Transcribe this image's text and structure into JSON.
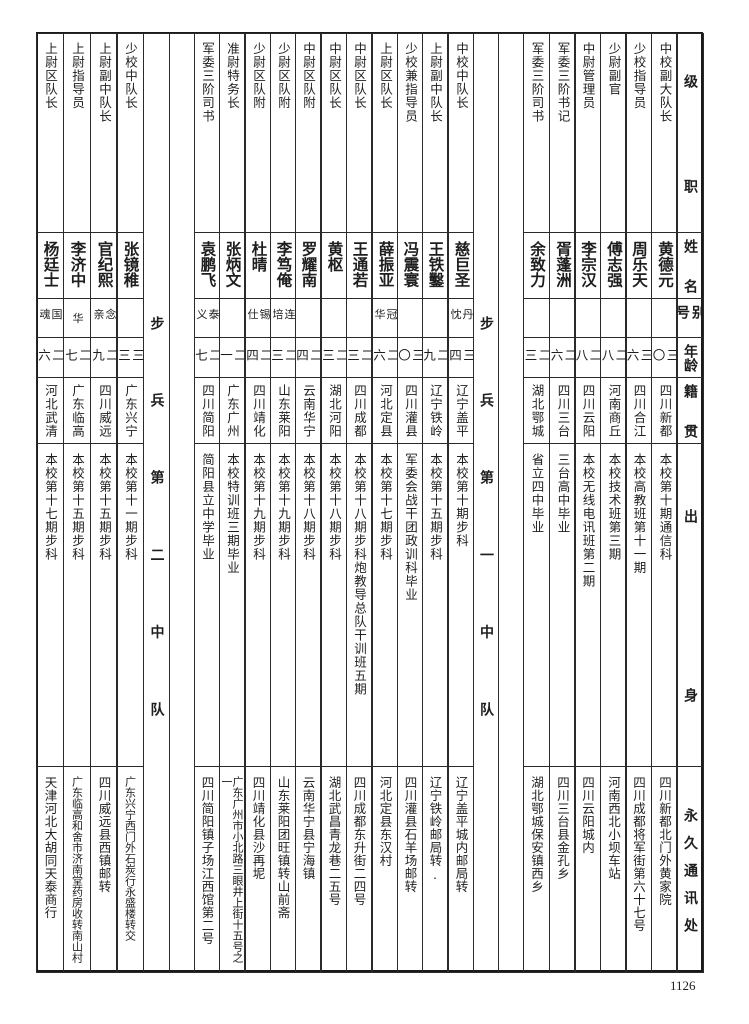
{
  "header": {
    "rank": "级职",
    "name": "姓名",
    "alias": "别号",
    "age": "年龄",
    "native": "籍贯",
    "education": "出身",
    "address": "永久通讯处"
  },
  "groups": [
    {
      "label": "",
      "rows": [
        {
          "rank": "中校副大队长",
          "name": "黄德元",
          "alias": "",
          "age": "三〇",
          "native": "四川新都",
          "education": "本校第十期通信科",
          "address": "四川新都北门外黄家院"
        },
        {
          "rank": "少校指导员",
          "name": "周乐天",
          "alias": "",
          "age": "三六",
          "native": "四川合江",
          "education": "本校高教班第十一期",
          "address": "四川成都将军街第六十七号"
        },
        {
          "rank": "少尉副官",
          "name": "傅志强",
          "alias": "",
          "age": "二八",
          "native": "河南商丘",
          "education": "本校技术班第三期",
          "address": "河南西北小坝车站"
        },
        {
          "rank": "中尉管理员",
          "name": "李宗汉",
          "alias": "",
          "age": "二八",
          "native": "四川云阳",
          "education": "本校无线电讯班第二期",
          "address": "四川云阳城内"
        },
        {
          "rank": "军委三阶书记",
          "name": "胥蓬洲",
          "alias": "",
          "age": "二六",
          "native": "四川三台",
          "education": "三台高中毕业",
          "address": "四川三台县金孔乡"
        },
        {
          "rank": "军委三阶司书",
          "name": "余致力",
          "alias": "",
          "age": "二三",
          "native": "湖北鄂城",
          "education": "省立四中毕业",
          "address": "湖北鄂城保安镇西乡"
        }
      ]
    },
    {
      "label": "步兵第一中队",
      "rows": [
        {
          "rank": "中校中队长",
          "name": "慈巨圣",
          "alias": "丹忱",
          "age": "三四",
          "native": "辽宁盖平",
          "education": "本校第十期步科",
          "address": "辽宁盖平城内邮局转"
        },
        {
          "rank": "上尉副中队长",
          "name": "王铁鑿",
          "alias": "",
          "age": "二九",
          "native": "辽宁铁岭",
          "education": "本校第十五期步科",
          "address": "辽宁铁岭邮局转."
        },
        {
          "rank": "少校兼指导员",
          "name": "冯震寰",
          "alias": "",
          "age": "三〇",
          "native": "四川灌县",
          "education": "军委会战干团政训科毕业",
          "address": "四川灌县石羊场邮转"
        },
        {
          "rank": "上尉区队长",
          "name": "薛振亚",
          "alias": "冠华",
          "age": "二六",
          "native": "河北定县",
          "education": "本校第十七期步科",
          "address": "河北定县东汉村"
        },
        {
          "rank": "中尉区队长",
          "name": "王通若",
          "alias": "",
          "age": "二三",
          "native": "四川成都",
          "education": "本校第十八期步科炮教导总队干训班五期",
          "address": "四川成都东升街二四号"
        },
        {
          "rank": "中尉区队长",
          "name": "黄枢",
          "alias": "",
          "age": "二三",
          "native": "湖北河阳",
          "education": "本校第十八期步科",
          "address": "湖北武昌青龙巷二五号"
        },
        {
          "rank": "中尉区队附",
          "name": "罗耀南",
          "alias": "",
          "age": "二四",
          "native": "云南华宁",
          "education": "本校第十八期步科",
          "address": "云南华宁县宁海镇"
        },
        {
          "rank": "少尉区队附",
          "name": "李笃俺",
          "alias": "连培",
          "age": "二三",
          "native": "山东莱阳",
          "education": "本校第十九期步科",
          "address": "山东莱阳团旺镇转山前斋"
        },
        {
          "rank": "少尉区队附",
          "name": "杜晴",
          "alias": "锡仕",
          "age": "二四",
          "native": "四川靖化",
          "education": "本校第十九期步科",
          "address": "四川靖化县沙再坭"
        },
        {
          "rank": "准尉特务长",
          "name": "张炳文",
          "alias": "",
          "age": "二一",
          "native": "广东广州",
          "education": "本校特训班三期毕业",
          "address": "广东广州市小北路三眼井上街十五号之一"
        },
        {
          "rank": "军委三阶司书",
          "name": "袁鹏飞",
          "alias": "泰义",
          "age": "二七",
          "native": "四川简阳",
          "education": "简阳县立中学毕业",
          "address": "四川简阳镇子场江西馆第二号"
        }
      ]
    },
    {
      "label": "步兵第二中队",
      "rows": [
        {
          "rank": "少校中队长",
          "name": "张镜稚",
          "alias": "",
          "age": "三三",
          "native": "广东兴宁",
          "education": "本校第十一期步科",
          "address": "广东兴宁西门外石炭行永盛楼转交"
        },
        {
          "rank": "上尉副中队长",
          "name": "官纪熙",
          "alias": "念亲",
          "age": "二九",
          "native": "四川威远",
          "education": "本校第十五期步科",
          "address": "四川威远县西镇邮转"
        },
        {
          "rank": "上尉指导员",
          "name": "李济中",
          "alias": "华",
          "age": "二七",
          "native": "广东临高",
          "education": "本校第十五期步科",
          "address": "广东临高和舍市济南堂药房收转南山村"
        },
        {
          "rank": "上尉区队长",
          "name": "杨廷士",
          "alias": "国魂",
          "age": "二六",
          "native": "河北武清",
          "education": "本校第十七期步科",
          "address": "天津河北大胡同天泰商行"
        }
      ]
    }
  ],
  "page_number": "1126"
}
